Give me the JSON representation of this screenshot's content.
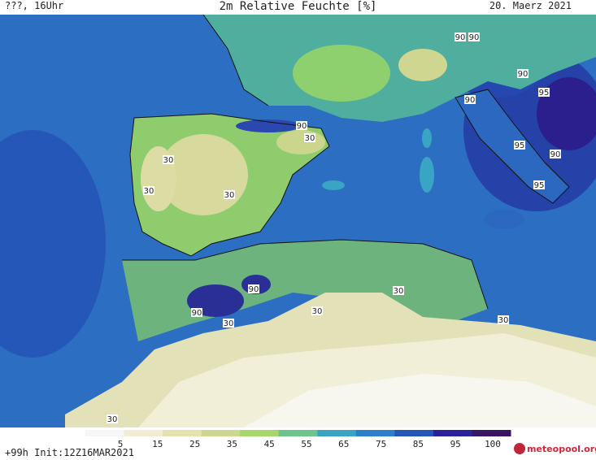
{
  "header": {
    "left_label": "???, 16Uhr",
    "title": "2m Relative Feuchte [%]",
    "date": "20. Maerz 2021"
  },
  "map": {
    "region": "Iberian Peninsula, Western Mediterranean, North Africa",
    "contour_labels": [
      {
        "text": "90"
      },
      {
        "text": "90"
      },
      {
        "text": "90"
      },
      {
        "text": "95"
      },
      {
        "text": "90"
      },
      {
        "text": "90"
      },
      {
        "text": "30"
      },
      {
        "text": "30"
      },
      {
        "text": "30"
      },
      {
        "text": "30"
      },
      {
        "text": "95"
      },
      {
        "text": "90"
      },
      {
        "text": "95"
      },
      {
        "text": "90"
      },
      {
        "text": "90"
      },
      {
        "text": "30"
      },
      {
        "text": "30"
      },
      {
        "text": "30"
      },
      {
        "text": "30"
      },
      {
        "text": "30"
      }
    ]
  },
  "colorbar": {
    "labels": [
      "5",
      "15",
      "25",
      "35",
      "45",
      "55",
      "65",
      "75",
      "85",
      "95",
      "100"
    ],
    "colors": [
      "#f6f6f6",
      "#f1ecd2",
      "#e6e2b0",
      "#cdd790",
      "#a7d66d",
      "#6fc38c",
      "#3aa4c4",
      "#2c7fc9",
      "#2456b8",
      "#29229a",
      "#3a1464"
    ]
  },
  "footer": {
    "init_label": "+99h  Init:12Z16MAR2021",
    "brand": "meteopool.org"
  }
}
